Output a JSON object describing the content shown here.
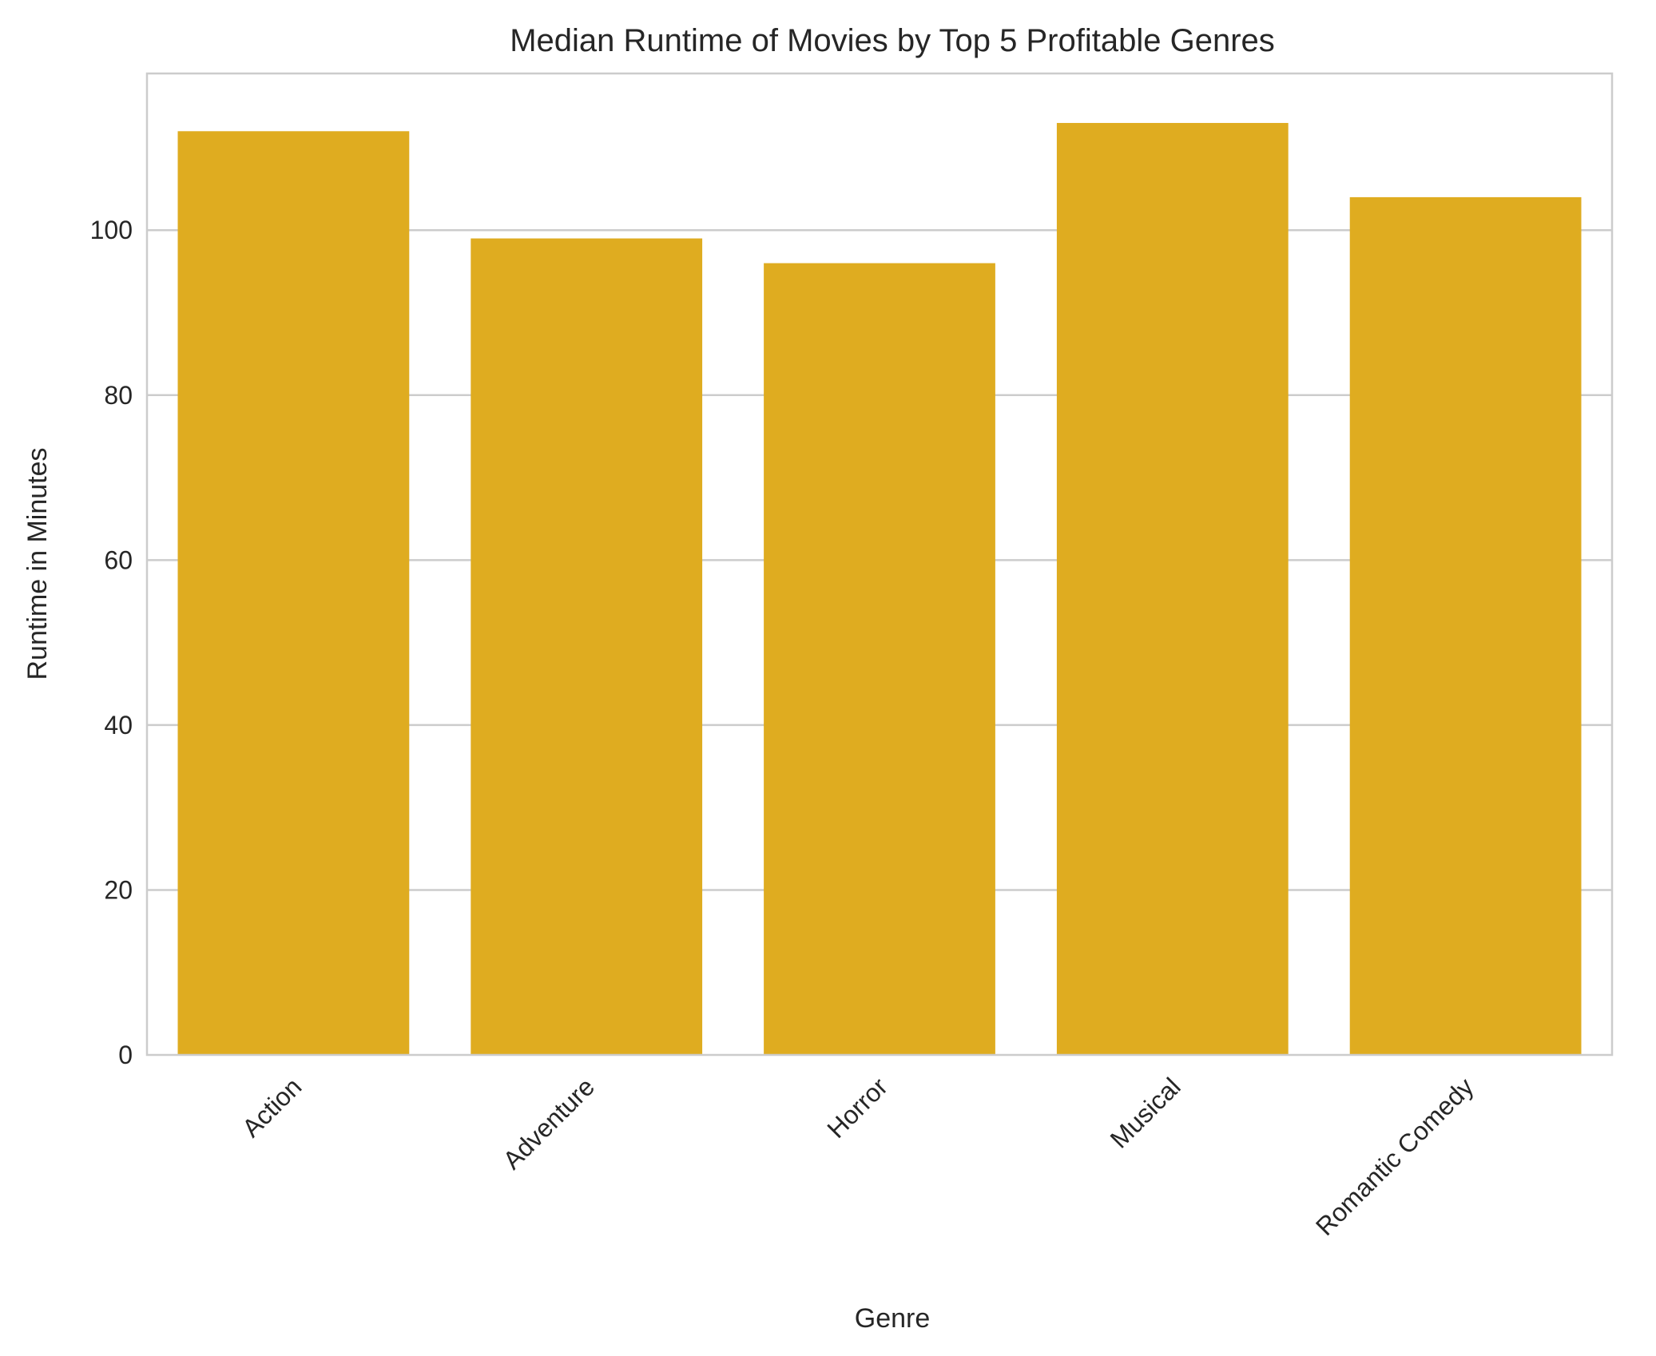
{
  "chart_data": {
    "type": "bar",
    "title": "Median Runtime of Movies by Top 5 Profitable Genres",
    "xlabel": "Genre",
    "ylabel": "Runtime in Minutes",
    "categories": [
      "Action",
      "Adventure",
      "Horror",
      "Musical",
      "Romantic Comedy"
    ],
    "values": [
      112,
      99,
      96,
      113,
      104
    ],
    "ylim": [
      0,
      119
    ],
    "yticks": [
      0,
      20,
      40,
      60,
      80,
      100
    ],
    "ytick_labels": [
      "0",
      "20",
      "40",
      "60",
      "80",
      "100"
    ],
    "grid": "horizontal",
    "bar_color": "#DFAC20",
    "grid_color": "#cccccc",
    "x_tick_rotation": "45deg"
  }
}
